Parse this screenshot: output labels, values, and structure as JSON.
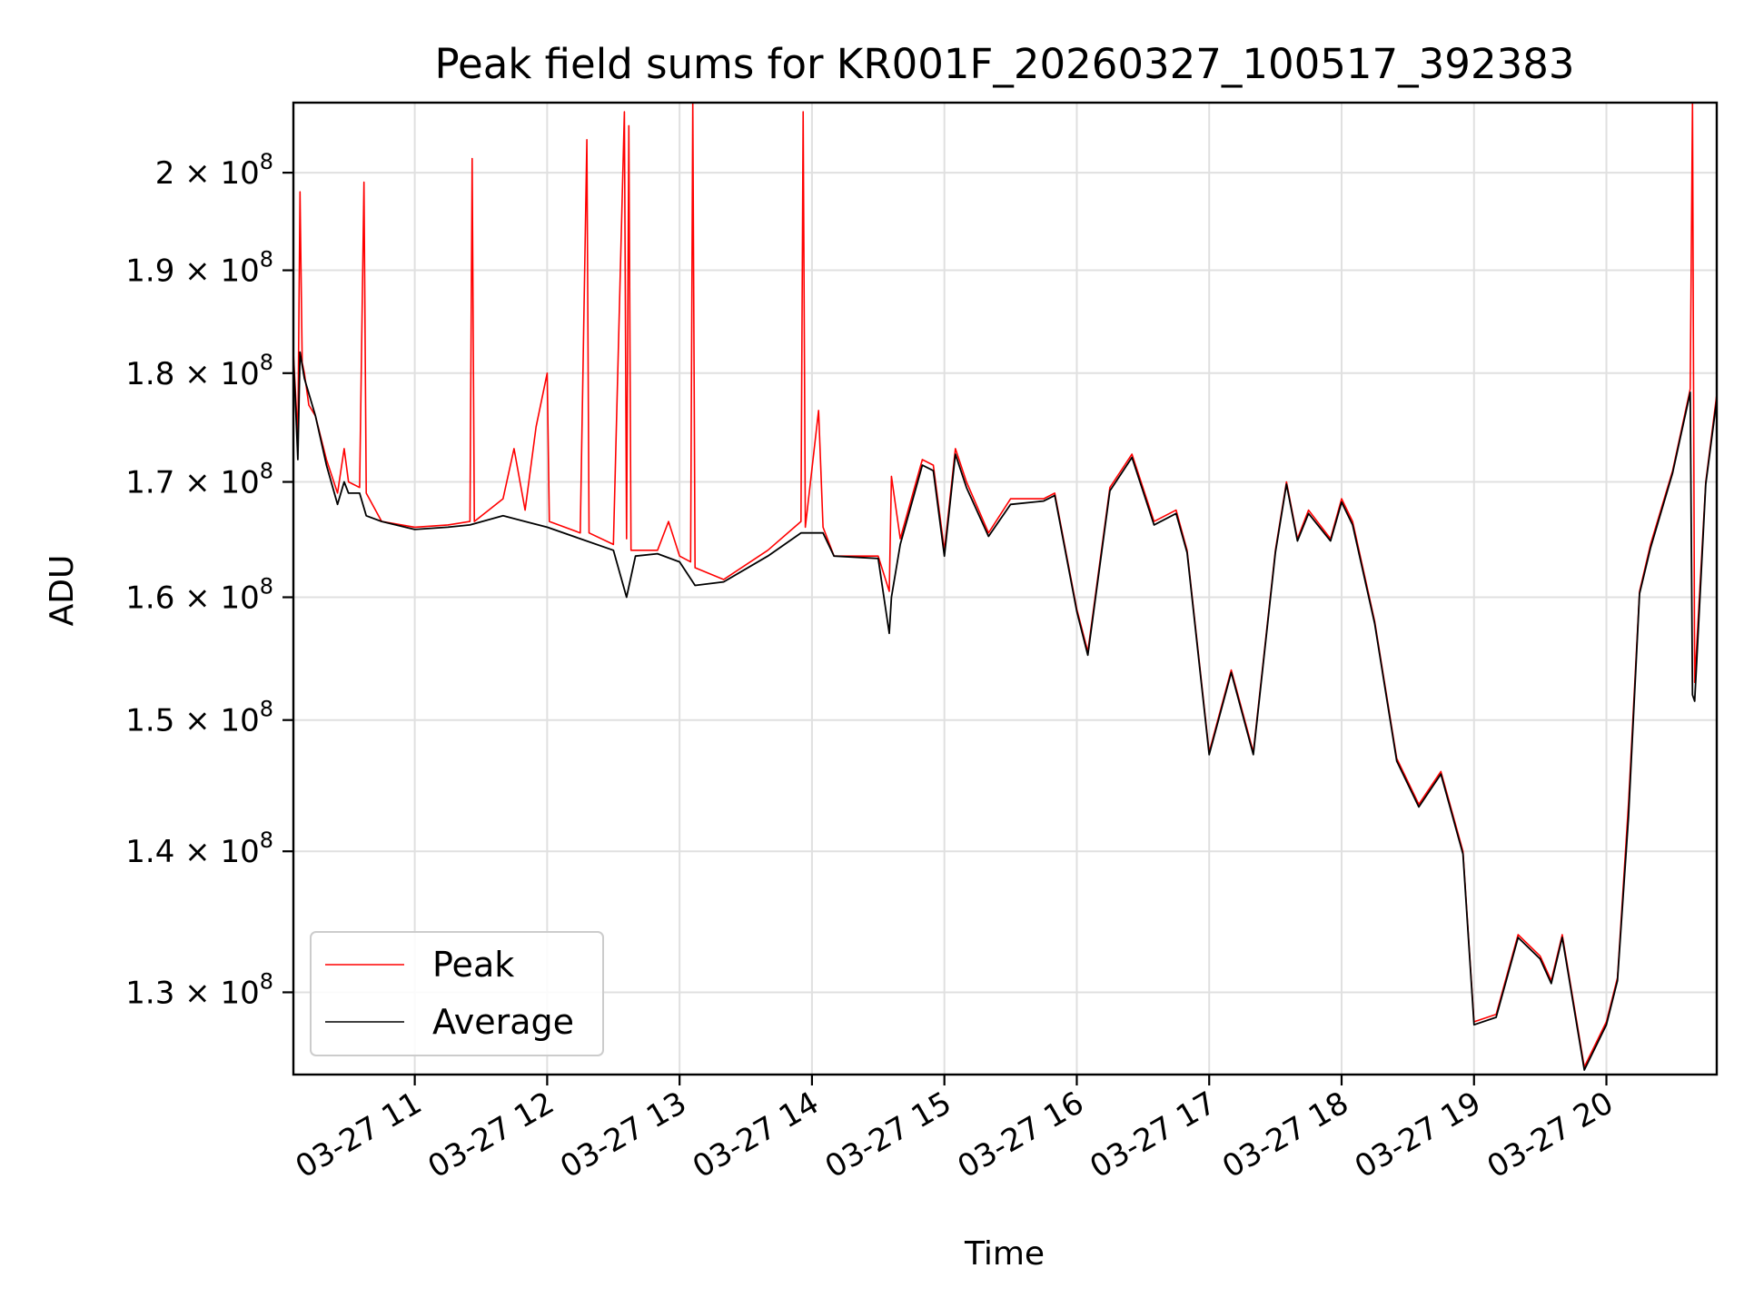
{
  "chart_data": {
    "type": "line",
    "title": "Peak field sums for KR001F_20260327_100517_392383",
    "xlabel": "Time",
    "ylabel": "ADU",
    "yscale": "log",
    "xlim": [
      "2026-03-27 10:05",
      "2026-03-27 20:50"
    ],
    "ylim": [
      124500000,
      207500000
    ],
    "grid": true,
    "legend_position": "lower-left",
    "xticks": [
      {
        "value": "2026-03-27 11:00",
        "label": "03-27 11"
      },
      {
        "value": "2026-03-27 12:00",
        "label": "03-27 12"
      },
      {
        "value": "2026-03-27 13:00",
        "label": "03-27 13"
      },
      {
        "value": "2026-03-27 14:00",
        "label": "03-27 14"
      },
      {
        "value": "2026-03-27 15:00",
        "label": "03-27 15"
      },
      {
        "value": "2026-03-27 16:00",
        "label": "03-27 16"
      },
      {
        "value": "2026-03-27 17:00",
        "label": "03-27 17"
      },
      {
        "value": "2026-03-27 18:00",
        "label": "03-27 18"
      },
      {
        "value": "2026-03-27 19:00",
        "label": "03-27 19"
      },
      {
        "value": "2026-03-27 20:00",
        "label": "03-27 20"
      }
    ],
    "yticks": [
      {
        "value": 130000000,
        "mantissa": "1.3",
        "label": "1.3 × 10^8"
      },
      {
        "value": 140000000,
        "mantissa": "1.4",
        "label": "1.4 × 10^8"
      },
      {
        "value": 150000000,
        "mantissa": "1.5",
        "label": "1.5 × 10^8"
      },
      {
        "value": 160000000,
        "mantissa": "1.6",
        "label": "1.6 × 10^8"
      },
      {
        "value": 170000000,
        "mantissa": "1.7",
        "label": "1.7 × 10^8"
      },
      {
        "value": 180000000,
        "mantissa": "1.8",
        "label": "1.8 × 10^8"
      },
      {
        "value": 190000000,
        "mantissa": "1.9",
        "label": "1.9 × 10^8"
      },
      {
        "value": 200000000,
        "mantissa": "2",
        "label": "2 × 10^8"
      }
    ],
    "series": [
      {
        "name": "Peak",
        "color": "#ff0000",
        "points": [
          [
            "2026-03-27 10:05",
            182000000
          ],
          [
            "2026-03-27 10:06",
            178000000
          ],
          [
            "2026-03-27 10:07",
            174000000
          ],
          [
            "2026-03-27 10:08",
            198000000
          ],
          [
            "2026-03-27 10:09",
            181000000
          ],
          [
            "2026-03-27 10:10",
            180000000
          ],
          [
            "2026-03-27 10:12",
            177000000
          ],
          [
            "2026-03-27 10:15",
            176000000
          ],
          [
            "2026-03-27 10:20",
            172000000
          ],
          [
            "2026-03-27 10:25",
            169000000
          ],
          [
            "2026-03-27 10:28",
            173000000
          ],
          [
            "2026-03-27 10:30",
            170000000
          ],
          [
            "2026-03-27 10:35",
            169500000
          ],
          [
            "2026-03-27 10:37",
            199000000
          ],
          [
            "2026-03-27 10:38",
            169000000
          ],
          [
            "2026-03-27 10:45",
            166500000
          ],
          [
            "2026-03-27 11:00",
            166000000
          ],
          [
            "2026-03-27 11:15",
            166200000
          ],
          [
            "2026-03-27 11:25",
            166500000
          ],
          [
            "2026-03-27 11:26",
            201500000
          ],
          [
            "2026-03-27 11:27",
            166500000
          ],
          [
            "2026-03-27 11:40",
            168500000
          ],
          [
            "2026-03-27 11:45",
            173000000
          ],
          [
            "2026-03-27 11:50",
            167500000
          ],
          [
            "2026-03-27 11:55",
            175000000
          ],
          [
            "2026-03-27 12:00",
            180000000
          ],
          [
            "2026-03-27 12:01",
            166500000
          ],
          [
            "2026-03-27 12:15",
            165500000
          ],
          [
            "2026-03-27 12:18",
            203500000
          ],
          [
            "2026-03-27 12:19",
            165500000
          ],
          [
            "2026-03-27 12:30",
            164500000
          ],
          [
            "2026-03-27 12:35",
            206500000
          ],
          [
            "2026-03-27 12:36",
            165000000
          ],
          [
            "2026-03-27 12:37",
            205000000
          ],
          [
            "2026-03-27 12:38",
            164000000
          ],
          [
            "2026-03-27 12:50",
            164000000
          ],
          [
            "2026-03-27 12:55",
            166500000
          ],
          [
            "2026-03-27 13:00",
            163500000
          ],
          [
            "2026-03-27 13:05",
            163000000
          ],
          [
            "2026-03-27 13:06",
            207500000
          ],
          [
            "2026-03-27 13:07",
            162500000
          ],
          [
            "2026-03-27 13:20",
            161500000
          ],
          [
            "2026-03-27 13:40",
            164000000
          ],
          [
            "2026-03-27 13:55",
            166500000
          ],
          [
            "2026-03-27 13:56",
            206500000
          ],
          [
            "2026-03-27 13:57",
            166000000
          ],
          [
            "2026-03-27 14:03",
            176500000
          ],
          [
            "2026-03-27 14:05",
            166000000
          ],
          [
            "2026-03-27 14:10",
            163500000
          ],
          [
            "2026-03-27 14:30",
            163500000
          ],
          [
            "2026-03-27 14:35",
            160500000
          ],
          [
            "2026-03-27 14:36",
            170500000
          ],
          [
            "2026-03-27 14:40",
            165000000
          ],
          [
            "2026-03-27 14:50",
            172000000
          ],
          [
            "2026-03-27 14:55",
            171500000
          ],
          [
            "2026-03-27 15:00",
            164000000
          ],
          [
            "2026-03-27 15:05",
            173000000
          ],
          [
            "2026-03-27 15:10",
            170000000
          ],
          [
            "2026-03-27 15:20",
            165500000
          ],
          [
            "2026-03-27 15:30",
            168500000
          ],
          [
            "2026-03-27 15:45",
            168500000
          ],
          [
            "2026-03-27 15:50",
            169000000
          ],
          [
            "2026-03-27 16:00",
            159000000
          ],
          [
            "2026-03-27 16:05",
            155500000
          ],
          [
            "2026-03-27 16:15",
            169500000
          ],
          [
            "2026-03-27 16:25",
            172500000
          ],
          [
            "2026-03-27 16:35",
            166500000
          ],
          [
            "2026-03-27 16:45",
            167500000
          ],
          [
            "2026-03-27 16:50",
            164000000
          ],
          [
            "2026-03-27 17:00",
            147500000
          ],
          [
            "2026-03-27 17:10",
            154000000
          ],
          [
            "2026-03-27 17:20",
            147500000
          ],
          [
            "2026-03-27 17:30",
            164000000
          ],
          [
            "2026-03-27 17:35",
            170000000
          ],
          [
            "2026-03-27 17:40",
            165000000
          ],
          [
            "2026-03-27 17:45",
            167500000
          ],
          [
            "2026-03-27 17:55",
            165000000
          ],
          [
            "2026-03-27 18:00",
            168500000
          ],
          [
            "2026-03-27 18:05",
            166500000
          ],
          [
            "2026-03-27 18:15",
            158000000
          ],
          [
            "2026-03-27 18:25",
            147000000
          ],
          [
            "2026-03-27 18:35",
            143500000
          ],
          [
            "2026-03-27 18:45",
            146000000
          ],
          [
            "2026-03-27 18:55",
            140000000
          ],
          [
            "2026-03-27 19:00",
            128000000
          ],
          [
            "2026-03-27 19:10",
            128500000
          ],
          [
            "2026-03-27 19:20",
            134000000
          ],
          [
            "2026-03-27 19:30",
            132500000
          ],
          [
            "2026-03-27 19:35",
            130800000
          ],
          [
            "2026-03-27 19:40",
            134000000
          ],
          [
            "2026-03-27 19:50",
            125000000
          ],
          [
            "2026-03-27 20:00",
            128000000
          ],
          [
            "2026-03-27 20:05",
            131000000
          ],
          [
            "2026-03-27 20:10",
            143500000
          ],
          [
            "2026-03-27 20:15",
            160500000
          ],
          [
            "2026-03-27 20:20",
            164500000
          ],
          [
            "2026-03-27 20:30",
            171000000
          ],
          [
            "2026-03-27 20:38",
            178500000
          ],
          [
            "2026-03-27 20:39",
            207500000
          ],
          [
            "2026-03-27 20:40",
            153000000
          ],
          [
            "2026-03-27 20:45",
            170000000
          ],
          [
            "2026-03-27 20:50",
            178000000
          ]
        ]
      },
      {
        "name": "Average",
        "color": "#000000",
        "points": [
          [
            "2026-03-27 10:05",
            181500000
          ],
          [
            "2026-03-27 10:06",
            177000000
          ],
          [
            "2026-03-27 10:07",
            172000000
          ],
          [
            "2026-03-27 10:08",
            182000000
          ],
          [
            "2026-03-27 10:10",
            179500000
          ],
          [
            "2026-03-27 10:15",
            176000000
          ],
          [
            "2026-03-27 10:20",
            171500000
          ],
          [
            "2026-03-27 10:25",
            168000000
          ],
          [
            "2026-03-27 10:28",
            170000000
          ],
          [
            "2026-03-27 10:30",
            169000000
          ],
          [
            "2026-03-27 10:35",
            169000000
          ],
          [
            "2026-03-27 10:38",
            167000000
          ],
          [
            "2026-03-27 10:45",
            166500000
          ],
          [
            "2026-03-27 11:00",
            165800000
          ],
          [
            "2026-03-27 11:15",
            166000000
          ],
          [
            "2026-03-27 11:25",
            166200000
          ],
          [
            "2026-03-27 11:40",
            167000000
          ],
          [
            "2026-03-27 11:50",
            166500000
          ],
          [
            "2026-03-27 12:00",
            166000000
          ],
          [
            "2026-03-27 12:15",
            165000000
          ],
          [
            "2026-03-27 12:30",
            164000000
          ],
          [
            "2026-03-27 12:36",
            160000000
          ],
          [
            "2026-03-27 12:40",
            163500000
          ],
          [
            "2026-03-27 12:50",
            163700000
          ],
          [
            "2026-03-27 13:00",
            163000000
          ],
          [
            "2026-03-27 13:07",
            161000000
          ],
          [
            "2026-03-27 13:20",
            161300000
          ],
          [
            "2026-03-27 13:40",
            163500000
          ],
          [
            "2026-03-27 13:55",
            165500000
          ],
          [
            "2026-03-27 14:05",
            165500000
          ],
          [
            "2026-03-27 14:10",
            163500000
          ],
          [
            "2026-03-27 14:30",
            163300000
          ],
          [
            "2026-03-27 14:35",
            157000000
          ],
          [
            "2026-03-27 14:36",
            160000000
          ],
          [
            "2026-03-27 14:40",
            164500000
          ],
          [
            "2026-03-27 14:50",
            171500000
          ],
          [
            "2026-03-27 14:55",
            171000000
          ],
          [
            "2026-03-27 15:00",
            163500000
          ],
          [
            "2026-03-27 15:05",
            172500000
          ],
          [
            "2026-03-27 15:10",
            169500000
          ],
          [
            "2026-03-27 15:20",
            165200000
          ],
          [
            "2026-03-27 15:30",
            168000000
          ],
          [
            "2026-03-27 15:45",
            168300000
          ],
          [
            "2026-03-27 15:50",
            168800000
          ],
          [
            "2026-03-27 16:00",
            158800000
          ],
          [
            "2026-03-27 16:05",
            155200000
          ],
          [
            "2026-03-27 16:15",
            169200000
          ],
          [
            "2026-03-27 16:25",
            172200000
          ],
          [
            "2026-03-27 16:35",
            166200000
          ],
          [
            "2026-03-27 16:45",
            167200000
          ],
          [
            "2026-03-27 16:50",
            163800000
          ],
          [
            "2026-03-27 17:00",
            147300000
          ],
          [
            "2026-03-27 17:10",
            153800000
          ],
          [
            "2026-03-27 17:20",
            147300000
          ],
          [
            "2026-03-27 17:30",
            163800000
          ],
          [
            "2026-03-27 17:35",
            169800000
          ],
          [
            "2026-03-27 17:40",
            164800000
          ],
          [
            "2026-03-27 17:45",
            167200000
          ],
          [
            "2026-03-27 17:55",
            164800000
          ],
          [
            "2026-03-27 18:00",
            168200000
          ],
          [
            "2026-03-27 18:05",
            166200000
          ],
          [
            "2026-03-27 18:15",
            157800000
          ],
          [
            "2026-03-27 18:25",
            146800000
          ],
          [
            "2026-03-27 18:35",
            143300000
          ],
          [
            "2026-03-27 18:45",
            145800000
          ],
          [
            "2026-03-27 18:55",
            139800000
          ],
          [
            "2026-03-27 19:00",
            127800000
          ],
          [
            "2026-03-27 19:10",
            128300000
          ],
          [
            "2026-03-27 19:20",
            133800000
          ],
          [
            "2026-03-27 19:30",
            132300000
          ],
          [
            "2026-03-27 19:35",
            130600000
          ],
          [
            "2026-03-27 19:40",
            133800000
          ],
          [
            "2026-03-27 19:50",
            124800000
          ],
          [
            "2026-03-27 20:00",
            127800000
          ],
          [
            "2026-03-27 20:05",
            130800000
          ],
          [
            "2026-03-27 20:10",
            142500000
          ],
          [
            "2026-03-27 20:15",
            160300000
          ],
          [
            "2026-03-27 20:20",
            164200000
          ],
          [
            "2026-03-27 20:30",
            170800000
          ],
          [
            "2026-03-27 20:38",
            178200000
          ],
          [
            "2026-03-27 20:39",
            152000000
          ],
          [
            "2026-03-27 20:40",
            151500000
          ],
          [
            "2026-03-27 20:45",
            169800000
          ],
          [
            "2026-03-27 20:50",
            177500000
          ]
        ]
      }
    ]
  }
}
